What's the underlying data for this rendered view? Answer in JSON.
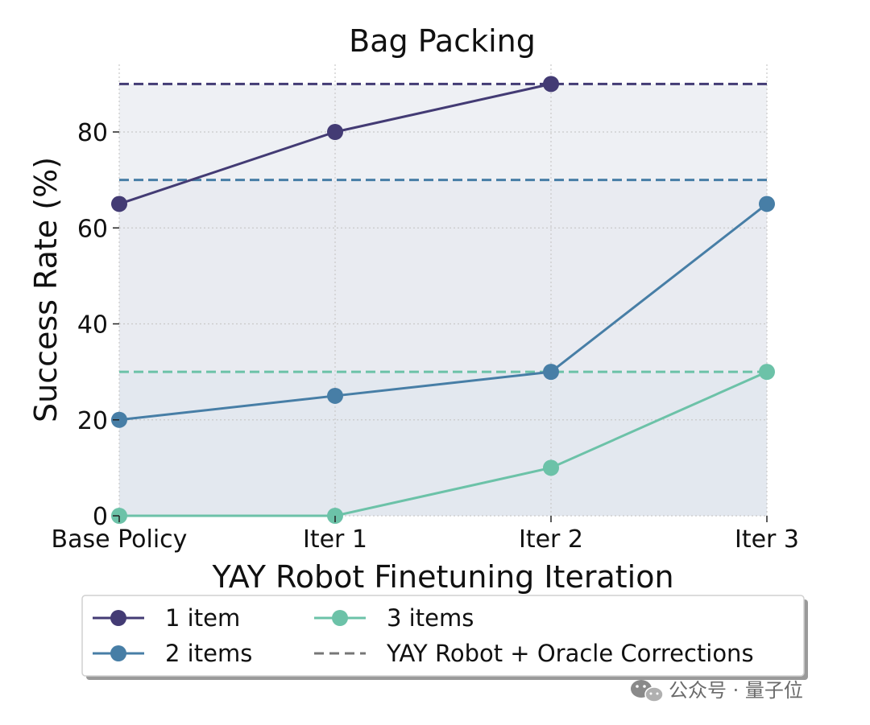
{
  "chart_data": {
    "type": "line",
    "title": "Bag Packing",
    "xlabel": "YAY Robot Finetuning Iteration",
    "ylabel": "Success Rate (%)",
    "categories": [
      "Base Policy",
      "Iter 1",
      "Iter 2",
      "Iter 3"
    ],
    "ylim": [
      0,
      92
    ],
    "yticks": [
      0,
      20,
      40,
      60,
      80
    ],
    "grid": true,
    "legend_position": "bottom",
    "series": [
      {
        "name": "1 item",
        "color": "#433b74",
        "values": [
          65,
          80,
          90,
          null
        ],
        "oracle": 90
      },
      {
        "name": "2 items",
        "color": "#477ea6",
        "values": [
          20,
          25,
          30,
          65
        ],
        "oracle": 70
      },
      {
        "name": "3 items",
        "color": "#6cc2a8",
        "values": [
          0,
          0,
          10,
          30
        ],
        "oracle": 30
      }
    ],
    "oracle_legend_label": "YAY Robot + Oracle Corrections",
    "oracle_legend_color": "#777777"
  },
  "watermark": {
    "icon": "wechat-icon",
    "text": "公众号 · 量子位"
  }
}
